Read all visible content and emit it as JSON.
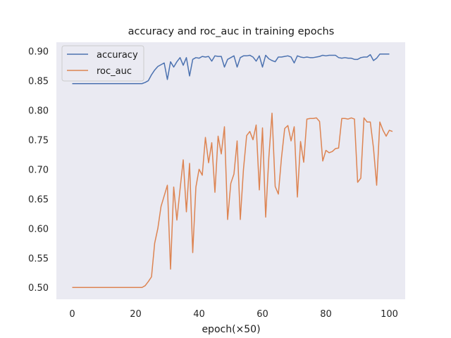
{
  "chart_data": {
    "type": "line",
    "title": "accuracy and roc_auc in training epochs",
    "xlabel": "epoch(×50)",
    "ylabel": "",
    "xlim": [
      -5,
      105
    ],
    "ylim": [
      0.48,
      0.915
    ],
    "xticks": [
      0,
      20,
      40,
      60,
      80,
      100
    ],
    "xtick_labels": [
      "0",
      "20",
      "40",
      "60",
      "80",
      "100"
    ],
    "yticks": [
      0.5,
      0.55,
      0.6,
      0.65,
      0.7,
      0.75,
      0.8,
      0.85,
      0.9
    ],
    "ytick_labels": [
      "0.50",
      "0.55",
      "0.60",
      "0.65",
      "0.70",
      "0.75",
      "0.80",
      "0.85",
      "0.90"
    ],
    "grid": false,
    "legend_position": "top-left",
    "background": "#eaeaf2",
    "series": [
      {
        "name": "accuracy",
        "color": "#4c72b0",
        "values": [
          0.845,
          0.845,
          0.845,
          0.845,
          0.845,
          0.845,
          0.845,
          0.845,
          0.845,
          0.845,
          0.845,
          0.845,
          0.845,
          0.845,
          0.845,
          0.845,
          0.845,
          0.845,
          0.845,
          0.845,
          0.845,
          0.845,
          0.845,
          0.847,
          0.85,
          0.86,
          0.868,
          0.874,
          0.877,
          0.88,
          0.852,
          0.882,
          0.873,
          0.882,
          0.889,
          0.876,
          0.889,
          0.858,
          0.886,
          0.889,
          0.888,
          0.891,
          0.89,
          0.891,
          0.883,
          0.892,
          0.891,
          0.891,
          0.873,
          0.886,
          0.889,
          0.892,
          0.873,
          0.889,
          0.892,
          0.892,
          0.893,
          0.89,
          0.883,
          0.892,
          0.873,
          0.893,
          0.887,
          0.884,
          0.882,
          0.89,
          0.89,
          0.891,
          0.892,
          0.89,
          0.88,
          0.892,
          0.89,
          0.889,
          0.89,
          0.889,
          0.889,
          0.89,
          0.891,
          0.893,
          0.892,
          0.893,
          0.893,
          0.893,
          0.889,
          0.888,
          0.889,
          0.888,
          0.888,
          0.886,
          0.886,
          0.889,
          0.89,
          0.89,
          0.894,
          0.884,
          0.888,
          0.895,
          0.895,
          0.895,
          0.895
        ]
      },
      {
        "name": "roc_auc",
        "color": "#dd8452",
        "values": [
          0.5,
          0.5,
          0.5,
          0.5,
          0.5,
          0.5,
          0.5,
          0.5,
          0.5,
          0.5,
          0.5,
          0.5,
          0.5,
          0.5,
          0.5,
          0.5,
          0.5,
          0.5,
          0.5,
          0.5,
          0.5,
          0.5,
          0.5,
          0.503,
          0.51,
          0.518,
          0.575,
          0.6,
          0.637,
          0.655,
          0.673,
          0.531,
          0.67,
          0.614,
          0.666,
          0.716,
          0.628,
          0.71,
          0.559,
          0.67,
          0.7,
          0.69,
          0.754,
          0.711,
          0.745,
          0.661,
          0.756,
          0.726,
          0.772,
          0.615,
          0.676,
          0.692,
          0.748,
          0.615,
          0.7,
          0.757,
          0.764,
          0.75,
          0.775,
          0.665,
          0.77,
          0.619,
          0.72,
          0.795,
          0.671,
          0.658,
          0.72,
          0.769,
          0.774,
          0.748,
          0.772,
          0.653,
          0.747,
          0.712,
          0.785,
          0.786,
          0.786,
          0.787,
          0.781,
          0.714,
          0.732,
          0.728,
          0.73,
          0.735,
          0.736,
          0.786,
          0.786,
          0.785,
          0.787,
          0.785,
          0.678,
          0.685,
          0.787,
          0.78,
          0.78,
          0.736,
          0.673,
          0.78,
          0.766,
          0.756,
          0.766,
          0.764
        ]
      }
    ]
  }
}
